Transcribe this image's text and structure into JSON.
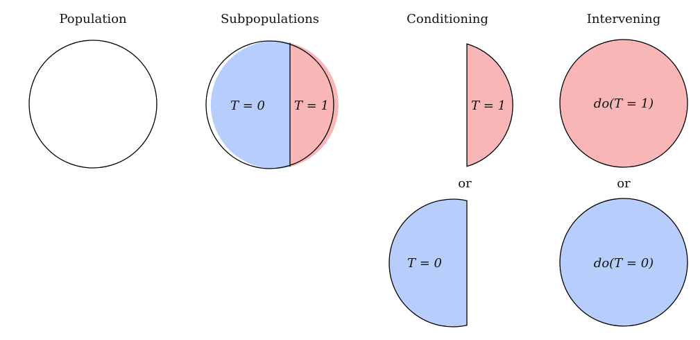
{
  "colors": {
    "treated": "#f9b6b6",
    "control": "#b7cdfb",
    "stroke": "#000000",
    "background": "#ffffff"
  },
  "panels": {
    "population": {
      "title": "Population"
    },
    "subpopulations": {
      "title": "Subpopulations",
      "left_label": "T = 0",
      "right_label": "T = 1"
    },
    "conditioning": {
      "title": "Conditioning",
      "top_label": "T = 1",
      "or_label": "or",
      "bottom_label": "T = 0"
    },
    "intervening": {
      "title": "Intervening",
      "top_label": "do(T = 1)",
      "or_label": "or",
      "bottom_label": "do(T = 0)"
    }
  }
}
